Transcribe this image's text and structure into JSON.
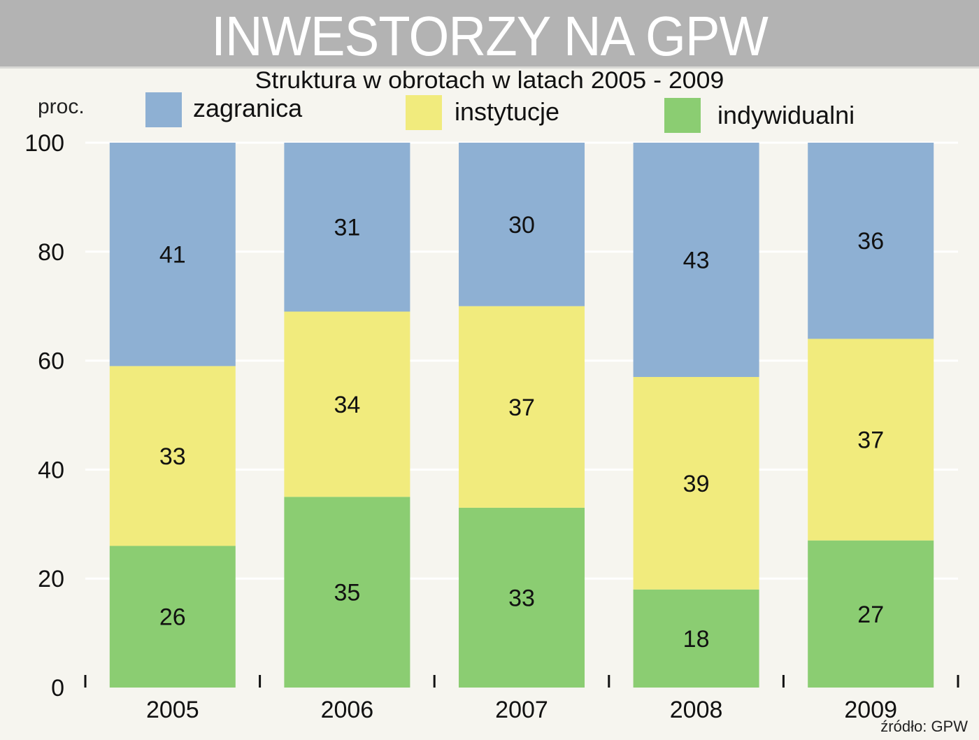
{
  "header": {
    "title": "INWESTORZY NA GPW"
  },
  "source": "źródło: GPW",
  "colors": {
    "zagranica": "#8eb0d3",
    "instytucje": "#f1eb7d",
    "indywidualni": "#8bcd72",
    "title_bar": "#b3b3b3"
  },
  "chart_data": {
    "type": "bar",
    "stacked": true,
    "title": "Struktura w obrotach w latach 2005 - 2009",
    "ylabel": "proc.",
    "ylim": [
      0,
      100
    ],
    "yticks": [
      0,
      20,
      40,
      60,
      80,
      100
    ],
    "grid": true,
    "legend_position": "top",
    "categories": [
      "2005",
      "2006",
      "2007",
      "2008",
      "2009"
    ],
    "series": [
      {
        "name": "indywidualni",
        "color": "#8bcd72",
        "values": [
          26,
          35,
          33,
          18,
          27
        ]
      },
      {
        "name": "instytucje",
        "color": "#f1eb7d",
        "values": [
          33,
          34,
          37,
          39,
          37
        ]
      },
      {
        "name": "zagranica",
        "color": "#8eb0d3",
        "values": [
          41,
          31,
          30,
          43,
          36
        ]
      }
    ],
    "legend_order": [
      "zagranica",
      "instytucje",
      "indywidualni"
    ]
  }
}
